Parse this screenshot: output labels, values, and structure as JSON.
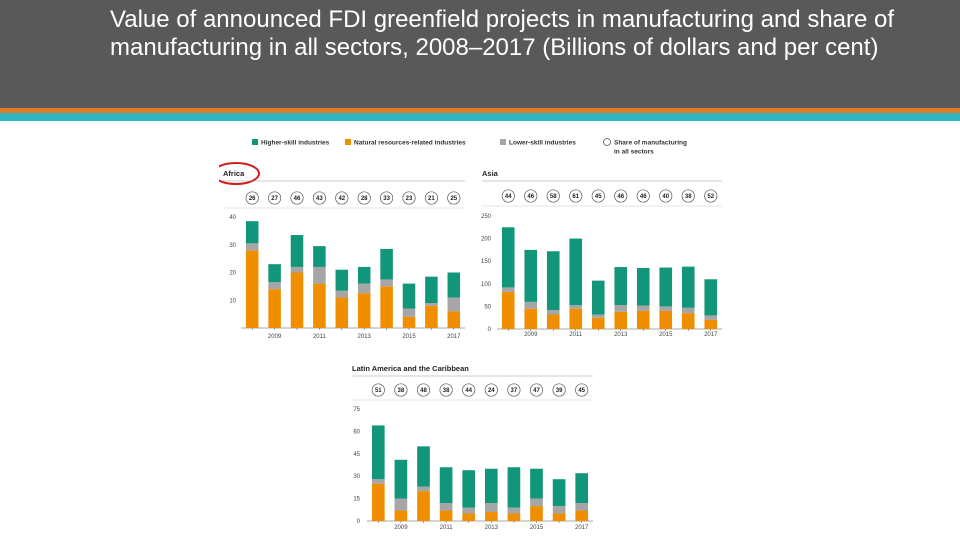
{
  "slide": {
    "title": "Value of announced FDI greenfield projects in manufacturing and share of manufacturing in all sectors, 2008–2017 (Billions of dollars and per cent)"
  },
  "colors": {
    "header_bg": "#595959",
    "accent_orange": "#e07b28",
    "accent_teal": "#2fb4c2",
    "higher_skill": "#12967a",
    "natural_resources": "#ef8f00",
    "lower_skill": "#a6a6a6",
    "highlight_circle": "#cc1e1e"
  },
  "legend": {
    "higher_skill": "Higher-skill industries",
    "natural_resources": "Natural resources-related industries",
    "lower_skill": "Lower-skill industries",
    "share_line1": "Share of manufacturing",
    "share_line2": "in all sectors"
  },
  "chart_data": [
    {
      "type": "bar",
      "stacked": true,
      "title": "Africa",
      "highlighted": true,
      "categories": [
        "2008",
        "2009",
        "2010",
        "2011",
        "2012",
        "2013",
        "2014",
        "2015",
        "2016",
        "2017"
      ],
      "x_tick_labels": [
        "",
        "2009",
        "",
        "2011",
        "",
        "2013",
        "",
        "2015",
        "",
        "2017"
      ],
      "series": [
        {
          "name": "Natural resources-related industries",
          "values": [
            28,
            14,
            20,
            16,
            11,
            12.5,
            15,
            4,
            8,
            6
          ]
        },
        {
          "name": "Lower-skill industries",
          "values": [
            2.5,
            2.5,
            2,
            6,
            2.5,
            3.5,
            2.5,
            3,
            1,
            5
          ]
        },
        {
          "name": "Higher-skill industries",
          "values": [
            8,
            6.5,
            11.5,
            7.5,
            7.5,
            6,
            11,
            9,
            9.5,
            9
          ]
        }
      ],
      "share_of_manufacturing": [
        26,
        27,
        46,
        43,
        42,
        28,
        33,
        23,
        21,
        25
      ],
      "ylim": [
        0,
        40
      ],
      "yticks": [
        10,
        20,
        30,
        40
      ],
      "xlabel": "",
      "ylabel": ""
    },
    {
      "type": "bar",
      "stacked": true,
      "title": "Asia",
      "categories": [
        "2008",
        "2009",
        "2010",
        "2011",
        "2012",
        "2013",
        "2014",
        "2015",
        "2016",
        "2017"
      ],
      "x_tick_labels": [
        "",
        "2009",
        "",
        "2011",
        "",
        "2013",
        "",
        "2015",
        "",
        "2017"
      ],
      "series": [
        {
          "name": "Natural resources-related industries",
          "values": [
            82,
            45,
            32,
            45,
            25,
            38,
            40,
            40,
            35,
            20
          ]
        },
        {
          "name": "Lower-skill industries",
          "values": [
            10,
            15,
            10,
            8,
            7,
            15,
            12,
            10,
            12,
            10
          ]
        },
        {
          "name": "Higher-skill industries",
          "values": [
            133,
            115,
            130,
            147,
            75,
            84,
            83,
            86,
            91,
            80
          ]
        }
      ],
      "share_of_manufacturing": [
        44,
        46,
        58,
        61,
        45,
        46,
        46,
        40,
        38,
        52
      ],
      "ylim": [
        0,
        250
      ],
      "yticks": [
        0,
        50,
        100,
        150,
        200,
        250
      ],
      "xlabel": "",
      "ylabel": ""
    },
    {
      "type": "bar",
      "stacked": true,
      "title": "Latin America and the Caribbean",
      "categories": [
        "2008",
        "2009",
        "2010",
        "2011",
        "2012",
        "2013",
        "2014",
        "2015",
        "2016",
        "2017"
      ],
      "x_tick_labels": [
        "",
        "2009",
        "",
        "2011",
        "",
        "2013",
        "",
        "2015",
        "",
        "2017"
      ],
      "series": [
        {
          "name": "Natural resources-related industries",
          "values": [
            25,
            7,
            20,
            7,
            5,
            6,
            5,
            10,
            5,
            7
          ]
        },
        {
          "name": "Lower-skill industries",
          "values": [
            3,
            8,
            3,
            5,
            4,
            6,
            4,
            5,
            5,
            5
          ]
        },
        {
          "name": "Higher-skill industries",
          "values": [
            36,
            26,
            27,
            24,
            25,
            23,
            27,
            20,
            18,
            20
          ]
        }
      ],
      "share_of_manufacturing": [
        51,
        38,
        48,
        38,
        44,
        24,
        37,
        47,
        39,
        45
      ],
      "ylim": [
        0,
        75
      ],
      "yticks": [
        0,
        15,
        30,
        45,
        60,
        75
      ],
      "xlabel": "",
      "ylabel": ""
    }
  ]
}
